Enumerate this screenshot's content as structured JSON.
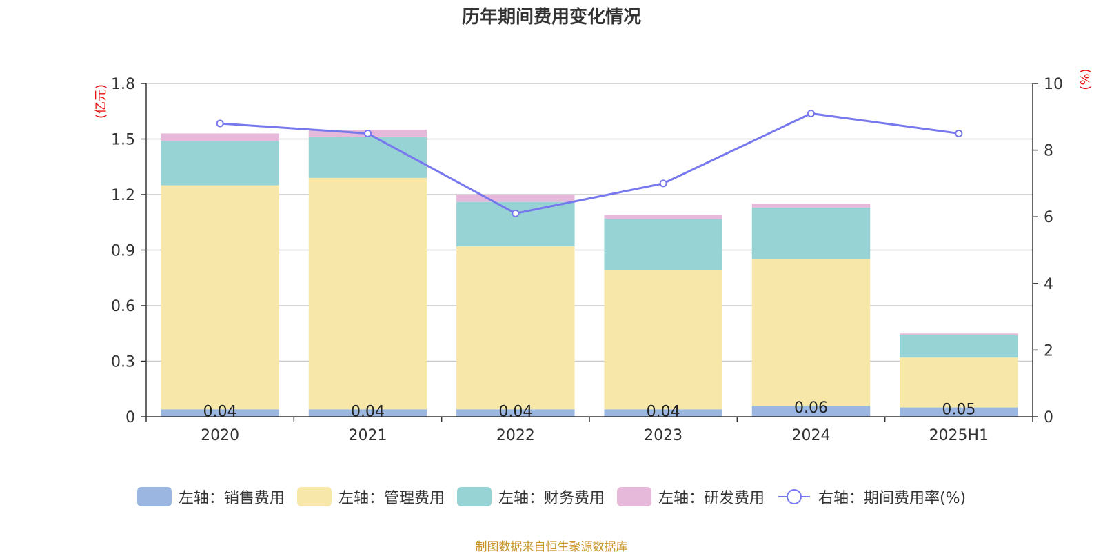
{
  "title": "历年期间费用变化情况",
  "source": "制图数据来自恒生聚源数据库",
  "chart_data": {
    "type": "bar",
    "stacked": true,
    "categories": [
      "2020",
      "2021",
      "2022",
      "2023",
      "2024",
      "2025H1"
    ],
    "left_axis": {
      "label": "(亿元)",
      "ylim": [
        0,
        1.8
      ],
      "ticks": [
        "0",
        "0.3",
        "0.6",
        "0.9",
        "1.2",
        "1.5",
        "1.8"
      ],
      "label_color": "#e81010"
    },
    "right_axis": {
      "label": "(%)",
      "ylim": [
        0,
        10
      ],
      "ticks": [
        "0",
        "2",
        "4",
        "6",
        "8",
        "10"
      ],
      "label_color": "#e81010"
    },
    "series": [
      {
        "name": "左轴：销售费用",
        "axis": "left",
        "kind": "bar",
        "color": "#9bb7e1",
        "values": [
          0.04,
          0.04,
          0.04,
          0.04,
          0.06,
          0.05
        ],
        "labels": [
          "0.04",
          "0.04",
          "0.04",
          "0.04",
          "0.06",
          "0.05"
        ]
      },
      {
        "name": "左轴：管理费用",
        "axis": "left",
        "kind": "bar",
        "color": "#f7e7a9",
        "values": [
          1.21,
          1.25,
          0.88,
          0.75,
          0.79,
          0.27
        ]
      },
      {
        "name": "左轴：财务费用",
        "axis": "left",
        "kind": "bar",
        "color": "#97d3d4",
        "values": [
          0.24,
          0.22,
          0.24,
          0.28,
          0.28,
          0.12
        ]
      },
      {
        "name": "左轴：研发费用",
        "axis": "left",
        "kind": "bar",
        "color": "#e6b8d9",
        "values": [
          0.04,
          0.04,
          0.04,
          0.02,
          0.02,
          0.01
        ]
      },
      {
        "name": "右轴：期间费用率(%)",
        "axis": "right",
        "kind": "line",
        "color": "#7878ee",
        "values": [
          8.8,
          8.5,
          6.1,
          7.0,
          9.1,
          8.5
        ]
      }
    ],
    "grid": true,
    "legend_position": "bottom"
  }
}
